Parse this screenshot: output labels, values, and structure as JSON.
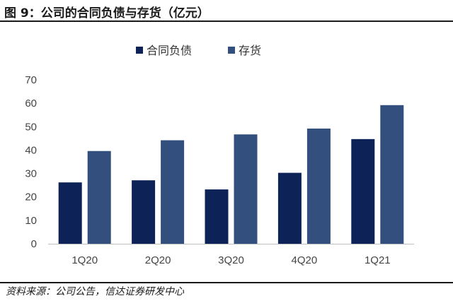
{
  "figure": {
    "title": "图 9：公司的合同负债与存货（亿元）",
    "source": "资料来源：公司公告，信达证券研发中心"
  },
  "chart_data": {
    "type": "bar",
    "title": "",
    "xlabel": "",
    "ylabel": "",
    "categories": [
      "1Q20",
      "2Q20",
      "3Q20",
      "4Q20",
      "1Q21"
    ],
    "ylim": [
      0,
      70
    ],
    "yticks": [
      0,
      10,
      20,
      30,
      40,
      50,
      60,
      70
    ],
    "grid": false,
    "legend_position": "top",
    "series": [
      {
        "name": "合同负债",
        "color": "#0d2257",
        "values": [
          26.2,
          27.1,
          23.2,
          30.3,
          44.7
        ]
      },
      {
        "name": "存货",
        "color": "#334f7e",
        "values": [
          39.6,
          44.2,
          46.7,
          49.2,
          59.2
        ]
      }
    ]
  }
}
